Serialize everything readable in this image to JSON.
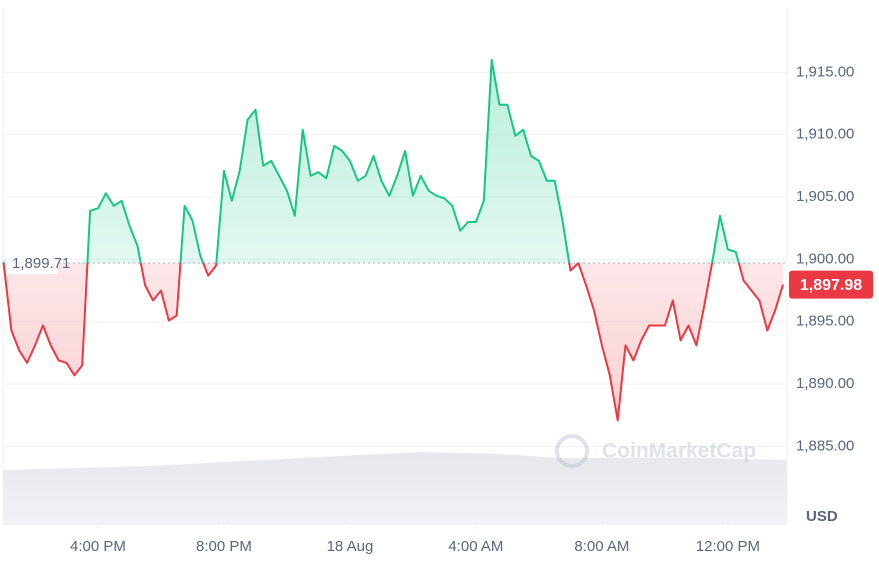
{
  "chart_data": {
    "type": "line",
    "currency": "USD",
    "watermark": "CoinMarketCap",
    "baseline": {
      "value": 1899.71,
      "label": "1,899.71"
    },
    "current_price": {
      "value": 1897.98,
      "label": "1,897.98"
    },
    "up_color": "#16c784",
    "down_color": "#ea3943",
    "ylim": [
      1878.7,
      1920
    ],
    "yticks": [
      {
        "value": 1885,
        "label": "1,885.00"
      },
      {
        "value": 1890,
        "label": "1,890.00"
      },
      {
        "value": 1895,
        "label": "1,895.00"
      },
      {
        "value": 1900,
        "label": "1,900.00"
      },
      {
        "value": 1905,
        "label": "1,905.00"
      },
      {
        "value": 1910,
        "label": "1,910.00"
      },
      {
        "value": 1915,
        "label": "1,915.00"
      }
    ],
    "xticks": [
      {
        "value": 12,
        "label": "4:00 PM"
      },
      {
        "value": 28,
        "label": "8:00 PM"
      },
      {
        "value": 44,
        "label": "18 Aug"
      },
      {
        "value": 60,
        "label": "4:00 AM"
      },
      {
        "value": 76,
        "label": "8:00 AM"
      },
      {
        "value": 92,
        "label": "12:00 PM"
      }
    ],
    "grid": true,
    "values": [
      1899.8,
      1894.3,
      1892.7,
      1891.7,
      1893.1,
      1894.7,
      1893.1,
      1891.9,
      1891.7,
      1890.7,
      1891.5,
      1903.9,
      1904.1,
      1905.3,
      1904.3,
      1904.7,
      1902.7,
      1901.1,
      1897.9,
      1896.7,
      1897.5,
      1895.1,
      1895.5,
      1904.3,
      1903.1,
      1900.3,
      1898.7,
      1899.5,
      1907.1,
      1904.7,
      1907.1,
      1911.2,
      1912.0,
      1907.5,
      1907.9,
      1906.7,
      1905.5,
      1903.5,
      1910.4,
      1906.7,
      1907.0,
      1906.5,
      1909.1,
      1908.7,
      1907.9,
      1906.3,
      1906.7,
      1908.3,
      1906.3,
      1905.1,
      1906.7,
      1908.7,
      1905.1,
      1906.7,
      1905.5,
      1905.1,
      1904.9,
      1904.3,
      1902.3,
      1903.0,
      1903.0,
      1904.7,
      1916.0,
      1912.4,
      1912.4,
      1909.9,
      1910.4,
      1908.3,
      1907.9,
      1906.3,
      1906.3,
      1903.1,
      1899.1,
      1899.7,
      1897.9,
      1895.9,
      1893.1,
      1890.7,
      1887.1,
      1893.1,
      1891.9,
      1893.5,
      1894.7,
      1894.7,
      1894.7,
      1896.7,
      1893.5,
      1894.7,
      1893.1,
      1896.3,
      1899.7,
      1903.5,
      1900.8,
      1900.6,
      1898.3,
      1897.5,
      1896.7,
      1894.3,
      1895.9,
      1897.98
    ]
  }
}
